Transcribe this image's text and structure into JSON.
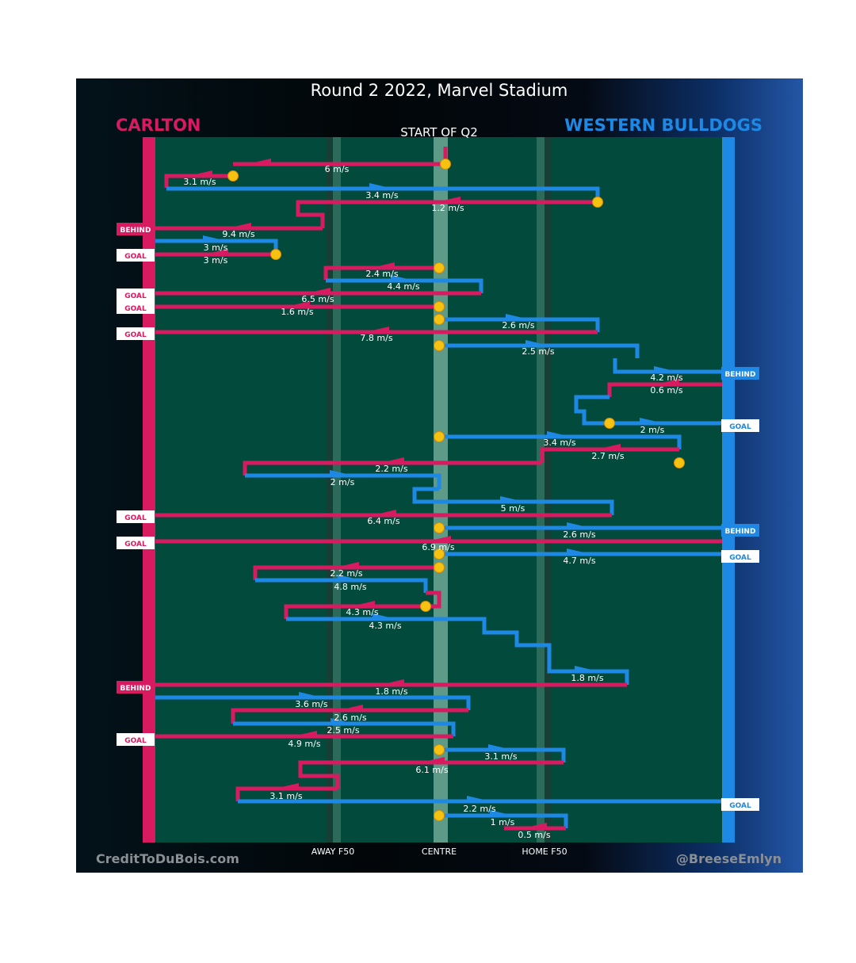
{
  "chart_data": {
    "type": "line",
    "title": "Round 2 2022, Marvel Stadium",
    "subtitle": "START OF Q2",
    "teams": {
      "left": "CARLTON",
      "right": "WESTERN BULLDOGS"
    },
    "x_tick_labels": [
      "AWAY F50",
      "CENTRE",
      "HOME F50"
    ],
    "credits": {
      "left": "CreditToDuBois.com",
      "right": "@BreeseEmlyn"
    },
    "colors": {
      "carlton": "#d81b60",
      "bulldogs": "#1e88e5",
      "field": "#024a3c",
      "ball": "#f5c211"
    },
    "chains": [
      {
        "team": "carlton",
        "speed": "6 m/s"
      },
      {
        "team": "carlton",
        "speed": "3.1 m/s"
      },
      {
        "team": "bulldogs",
        "speed": "3.4 m/s"
      },
      {
        "team": "carlton",
        "speed": "1.2 m/s"
      },
      {
        "team": "carlton",
        "speed": "9.4 m/s",
        "result": "BEHIND"
      },
      {
        "team": "bulldogs",
        "speed": "3 m/s"
      },
      {
        "team": "carlton",
        "speed": "3 m/s",
        "result": "GOAL"
      },
      {
        "team": "carlton",
        "speed": "2.4 m/s"
      },
      {
        "team": "bulldogs",
        "speed": "4.4 m/s"
      },
      {
        "team": "carlton",
        "speed": "6.5 m/s",
        "result": "GOAL"
      },
      {
        "team": "carlton",
        "speed": "1.6 m/s",
        "result": "GOAL"
      },
      {
        "team": "bulldogs",
        "speed": "2.6 m/s"
      },
      {
        "team": "carlton",
        "speed": "7.8 m/s",
        "result": "GOAL"
      },
      {
        "team": "bulldogs",
        "speed": "2.5 m/s"
      },
      {
        "team": "bulldogs",
        "speed": "4.2 m/s",
        "result": "BEHIND"
      },
      {
        "team": "carlton",
        "speed": "0.6 m/s"
      },
      {
        "team": "bulldogs",
        "speed": "2 m/s",
        "result": "GOAL"
      },
      {
        "team": "bulldogs",
        "speed": "3.4 m/s"
      },
      {
        "team": "carlton",
        "speed": "2.7 m/s"
      },
      {
        "team": "carlton",
        "speed": "2.2 m/s"
      },
      {
        "team": "bulldogs",
        "speed": "2 m/s"
      },
      {
        "team": "bulldogs",
        "speed": "5 m/s"
      },
      {
        "team": "carlton",
        "speed": "6.4 m/s",
        "result": "GOAL"
      },
      {
        "team": "bulldogs",
        "speed": "2.6 m/s",
        "result": "BEHIND"
      },
      {
        "team": "carlton",
        "speed": "6.9 m/s",
        "result": "GOAL"
      },
      {
        "team": "bulldogs",
        "speed": "4.7 m/s",
        "result": "GOAL"
      },
      {
        "team": "carlton",
        "speed": "2.2 m/s"
      },
      {
        "team": "bulldogs",
        "speed": "4.8 m/s"
      },
      {
        "team": "carlton",
        "speed": "4.3 m/s"
      },
      {
        "team": "bulldogs",
        "speed": "4.3 m/s"
      },
      {
        "team": "bulldogs",
        "speed": "1.8 m/s"
      },
      {
        "team": "carlton",
        "speed": "1.8 m/s",
        "result": "BEHIND"
      },
      {
        "team": "bulldogs",
        "speed": "3.6 m/s"
      },
      {
        "team": "carlton",
        "speed": "2.6 m/s"
      },
      {
        "team": "bulldogs",
        "speed": "2.5 m/s"
      },
      {
        "team": "carlton",
        "speed": "4.9 m/s",
        "result": "GOAL"
      },
      {
        "team": "bulldogs",
        "speed": "3.1 m/s"
      },
      {
        "team": "carlton",
        "speed": "6.1 m/s"
      },
      {
        "team": "carlton",
        "speed": "3.1 m/s"
      },
      {
        "team": "bulldogs",
        "speed": "2.2 m/s",
        "result": "GOAL"
      },
      {
        "team": "bulldogs",
        "speed": "1 m/s"
      },
      {
        "team": "carlton",
        "speed": "0.5 m/s"
      }
    ]
  }
}
